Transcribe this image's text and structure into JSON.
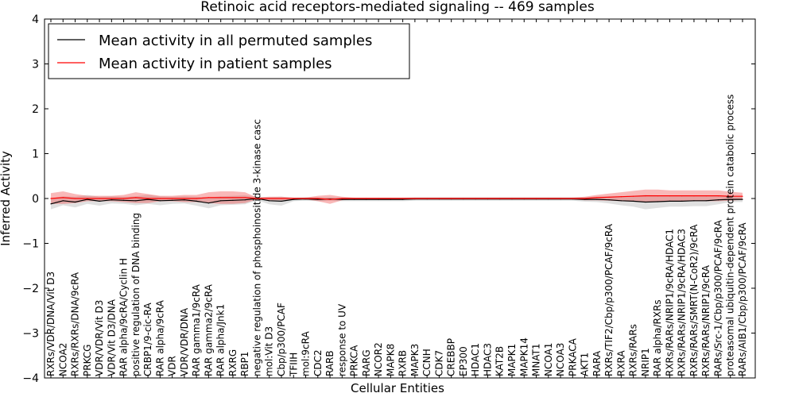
{
  "chart_data": {
    "type": "line",
    "title": "Retinoic acid receptors-mediated signaling -- 469 samples",
    "xlabel": "Cellular Entities",
    "ylabel": "Inferred Activity",
    "ylim": [
      -4,
      4
    ],
    "yticks": [
      -4,
      -3,
      -2,
      -1,
      0,
      1,
      2,
      3,
      4
    ],
    "ytick_labels": [
      "−4",
      "−3",
      "−2",
      "−1",
      "0",
      "1",
      "2",
      "3",
      "4"
    ],
    "legend_position": "upper-left",
    "categories": [
      "RXRs/VDR/DNA/Vit D3",
      "NCOA2",
      "RXRs/RXRs/DNA/9cRA",
      "PRKCG",
      "VDR/VDR/Vit D3",
      "VDR/Vit D3/DNA",
      "RAR alpha/9cRA/Cyclin H",
      "positive regulation of DNA binding",
      "CRBP1/9-cic-RA",
      "RAR alpha/9cRA",
      "VDR",
      "VDR/VDR/DNA",
      "RAR gamma1/9cRA",
      "RAR gamma2/9cRA",
      "RAR alpha/Jnk1",
      "RXRG",
      "RBP1",
      "negative regulation of phosphoinositide 3-kinase casc",
      "mol:Vit D3",
      "Cbp/p300/PCAF",
      "TFIIH",
      "mol:9cRA",
      "CDC2",
      "RARB",
      "response to UV",
      "PRKCA",
      "RARG",
      "NCOR2",
      "MAPK8",
      "RXRB",
      "MAPK3",
      "CCNH",
      "CDK7",
      "CREBBP",
      "EP300",
      "HDAC1",
      "HDAC3",
      "KAT2B",
      "MAPK1",
      "MAPK14",
      "MNAT1",
      "NCOA1",
      "NCOA3",
      "PRKACA",
      "AKT1",
      "RARA",
      "RXRs/TIF2/Cbp/p300/PCAF/9cRA",
      "RXRA",
      "RXRs/RARs",
      "NRIP1",
      "RAR alpha/RXRs",
      "RXRs/RARs/NRIP1/9cRA/HDAC1",
      "RXRs/RARs/NRIP1/9cRA/HDAC3",
      "RXRs/RARs/SMRT(N-CoR2)/9cRA",
      "RXRs/RARs/NRIP1/9cRA",
      "RARs/Src-1/Cbp/p300/PCAF/9cRA",
      "proteasomal ubiquitin-dependent protein catabolic process",
      "RARs/AIB1/Cbp/p300/PCAF/9cRA"
    ],
    "series": [
      {
        "name": "Mean activity in all permuted samples",
        "color": "#000000",
        "values": [
          -0.12,
          -0.05,
          -0.08,
          -0.02,
          -0.06,
          -0.03,
          -0.04,
          -0.05,
          -0.02,
          -0.05,
          -0.04,
          -0.03,
          -0.06,
          -0.1,
          -0.05,
          -0.04,
          -0.03,
          0.0,
          -0.05,
          -0.06,
          -0.02,
          -0.01,
          -0.02,
          -0.01,
          -0.02,
          -0.02,
          -0.02,
          -0.02,
          -0.02,
          -0.02,
          -0.01,
          -0.01,
          -0.01,
          -0.01,
          -0.01,
          -0.01,
          -0.01,
          -0.01,
          -0.01,
          -0.01,
          -0.01,
          -0.01,
          -0.01,
          -0.01,
          -0.02,
          -0.02,
          -0.03,
          -0.05,
          -0.06,
          -0.08,
          -0.07,
          -0.06,
          -0.06,
          -0.05,
          -0.05,
          -0.03,
          -0.02,
          -0.02
        ],
        "band": [
          0.12,
          0.1,
          0.12,
          0.1,
          0.1,
          0.08,
          0.08,
          0.1,
          0.1,
          0.1,
          0.08,
          0.08,
          0.1,
          0.12,
          0.1,
          0.1,
          0.1,
          0.04,
          0.08,
          0.1,
          0.04,
          0.04,
          0.04,
          0.04,
          0.04,
          0.04,
          0.04,
          0.04,
          0.04,
          0.04,
          0.04,
          0.04,
          0.04,
          0.04,
          0.04,
          0.04,
          0.04,
          0.04,
          0.04,
          0.04,
          0.04,
          0.04,
          0.04,
          0.04,
          0.05,
          0.06,
          0.08,
          0.1,
          0.12,
          0.16,
          0.14,
          0.12,
          0.12,
          0.12,
          0.12,
          0.1,
          0.06,
          0.06
        ]
      },
      {
        "name": "Mean activity in patient samples",
        "color": "#ff0000",
        "values": [
          0.0,
          0.02,
          0.0,
          0.0,
          0.0,
          0.0,
          0.0,
          0.02,
          0.0,
          0.0,
          0.0,
          0.0,
          0.0,
          0.02,
          0.02,
          0.02,
          0.02,
          0.0,
          0.0,
          0.0,
          0.0,
          0.0,
          0.0,
          -0.02,
          0.0,
          0.0,
          0.0,
          0.0,
          0.0,
          0.0,
          0.0,
          0.0,
          0.0,
          0.0,
          0.0,
          0.0,
          0.0,
          0.0,
          0.0,
          0.0,
          0.0,
          0.0,
          0.0,
          0.0,
          0.0,
          0.02,
          0.03,
          0.04,
          0.05,
          0.06,
          0.06,
          0.06,
          0.06,
          0.06,
          0.06,
          0.06,
          0.05,
          0.05
        ],
        "band": [
          0.12,
          0.14,
          0.1,
          0.06,
          0.06,
          0.06,
          0.08,
          0.12,
          0.1,
          0.06,
          0.06,
          0.08,
          0.08,
          0.12,
          0.14,
          0.14,
          0.12,
          0.02,
          0.04,
          0.04,
          0.02,
          0.02,
          0.06,
          0.1,
          0.04,
          0.02,
          0.02,
          0.02,
          0.02,
          0.02,
          0.02,
          0.02,
          0.02,
          0.02,
          0.02,
          0.02,
          0.02,
          0.02,
          0.02,
          0.02,
          0.02,
          0.02,
          0.02,
          0.02,
          0.04,
          0.06,
          0.08,
          0.1,
          0.12,
          0.14,
          0.14,
          0.12,
          0.12,
          0.12,
          0.12,
          0.12,
          0.1,
          0.08
        ]
      }
    ]
  }
}
